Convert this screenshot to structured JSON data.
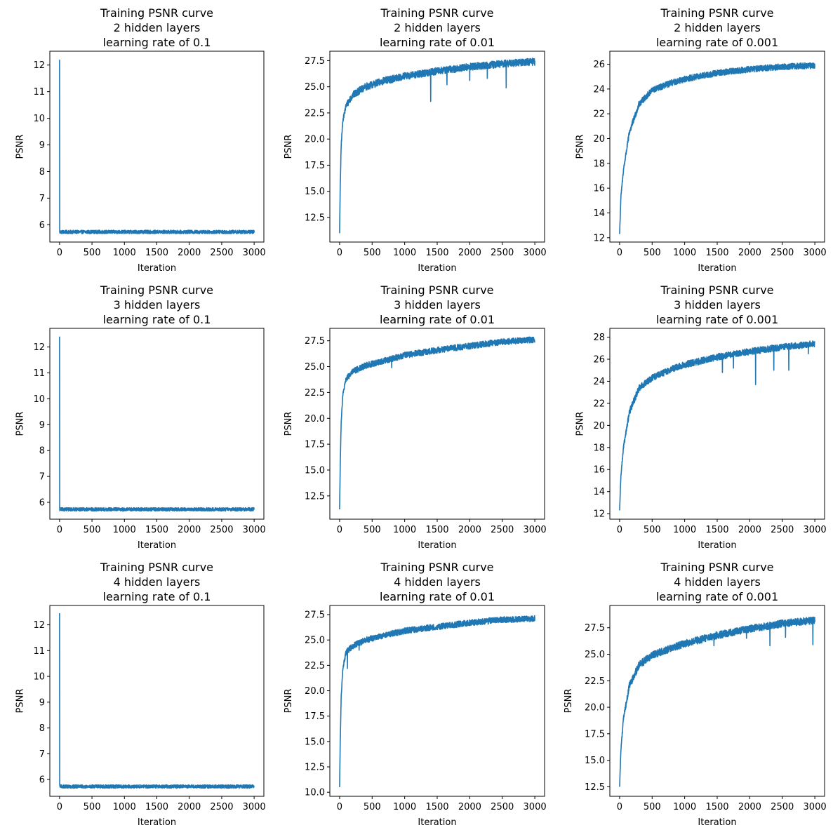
{
  "chart_data": [
    {
      "type": "line",
      "title": [
        "Training PSNR curve",
        "2 hidden layers",
        "learning rate of 0.1"
      ],
      "xlabel": "Iteration",
      "ylabel": "PSNR",
      "xlim": [
        -150,
        3150
      ],
      "ylim": [
        5.35,
        12.52
      ],
      "xticks": [
        0,
        500,
        1000,
        1500,
        2000,
        2500,
        3000
      ],
      "yticks": [
        6,
        7,
        8,
        9,
        10,
        11,
        12
      ],
      "ytick_labels": [
        "6",
        "7",
        "8",
        "9",
        "10",
        "11",
        "12"
      ],
      "series": [
        {
          "name": "PSNR",
          "color": "#1f77b4",
          "shape": "spike",
          "x": [
            0,
            3000
          ],
          "start": 12.2,
          "plateau": 5.73,
          "noise": 0.13,
          "dips": []
        }
      ]
    },
    {
      "type": "line",
      "title": [
        "Training PSNR curve",
        "2 hidden layers",
        "learning rate of 0.01"
      ],
      "xlabel": "Iteration",
      "ylabel": "PSNR",
      "xlim": [
        -150,
        3150
      ],
      "ylim": [
        10.15,
        28.4
      ],
      "xticks": [
        0,
        500,
        1000,
        1500,
        2000,
        2500,
        3000
      ],
      "yticks": [
        12.5,
        15.0,
        17.5,
        20.0,
        22.5,
        25.0,
        27.5
      ],
      "ytick_labels": [
        "12.5",
        "15.0",
        "17.5",
        "20.0",
        "22.5",
        "25.0",
        "27.5"
      ],
      "series": [
        {
          "name": "PSNR",
          "color": "#1f77b4",
          "shape": "rise",
          "x": [
            0,
            3000
          ],
          "start": 11.0,
          "points": [
            [
              0,
              11.0
            ],
            [
              10,
              15.5
            ],
            [
              25,
              19.5
            ],
            [
              50,
              21.8
            ],
            [
              100,
              23.2
            ],
            [
              200,
              24.2
            ],
            [
              400,
              25.0
            ],
            [
              700,
              25.6
            ],
            [
              1000,
              26.0
            ],
            [
              1500,
              26.5
            ],
            [
              2000,
              26.9
            ],
            [
              2500,
              27.2
            ],
            [
              3000,
              27.4
            ]
          ],
          "noise": 0.7,
          "dips": [
            [
              1400,
              23.6
            ],
            [
              1650,
              25.2
            ],
            [
              2000,
              25.6
            ],
            [
              2560,
              24.9
            ],
            [
              2270,
              25.8
            ]
          ]
        }
      ]
    },
    {
      "type": "line",
      "title": [
        "Training PSNR curve",
        "2 hidden layers",
        "learning rate of 0.001"
      ],
      "xlabel": "Iteration",
      "ylabel": "PSNR",
      "xlim": [
        -150,
        3150
      ],
      "ylim": [
        11.65,
        27.05
      ],
      "xticks": [
        0,
        500,
        1000,
        1500,
        2000,
        2500,
        3000
      ],
      "yticks": [
        12,
        14,
        16,
        18,
        20,
        22,
        24,
        26
      ],
      "ytick_labels": [
        "12",
        "14",
        "16",
        "18",
        "20",
        "22",
        "24",
        "26"
      ],
      "series": [
        {
          "name": "PSNR",
          "color": "#1f77b4",
          "shape": "rise",
          "x": [
            0,
            3000
          ],
          "start": 12.3,
          "points": [
            [
              0,
              12.3
            ],
            [
              20,
              15.3
            ],
            [
              60,
              17.5
            ],
            [
              150,
              20.5
            ],
            [
              300,
              22.8
            ],
            [
              500,
              23.9
            ],
            [
              800,
              24.5
            ],
            [
              1000,
              24.8
            ],
            [
              1500,
              25.3
            ],
            [
              2000,
              25.6
            ],
            [
              2500,
              25.8
            ],
            [
              3000,
              25.9
            ]
          ],
          "noise": 0.5,
          "dips": []
        }
      ]
    },
    {
      "type": "line",
      "title": [
        "Training PSNR curve",
        "3 hidden layers",
        "learning rate of 0.1"
      ],
      "xlabel": "Iteration",
      "ylabel": "PSNR",
      "xlim": [
        -150,
        3150
      ],
      "ylim": [
        5.35,
        12.72
      ],
      "xticks": [
        0,
        500,
        1000,
        1500,
        2000,
        2500,
        3000
      ],
      "yticks": [
        6,
        7,
        8,
        9,
        10,
        11,
        12
      ],
      "ytick_labels": [
        "6",
        "7",
        "8",
        "9",
        "10",
        "11",
        "12"
      ],
      "series": [
        {
          "name": "PSNR",
          "color": "#1f77b4",
          "shape": "spike",
          "x": [
            0,
            3000
          ],
          "start": 12.4,
          "plateau": 5.73,
          "noise": 0.13,
          "dips": []
        }
      ]
    },
    {
      "type": "line",
      "title": [
        "Training PSNR curve",
        "3 hidden layers",
        "learning rate of 0.01"
      ],
      "xlabel": "Iteration",
      "ylabel": "PSNR",
      "xlim": [
        -150,
        3150
      ],
      "ylim": [
        10.25,
        28.7
      ],
      "xticks": [
        0,
        500,
        1000,
        1500,
        2000,
        2500,
        3000
      ],
      "yticks": [
        12.5,
        15.0,
        17.5,
        20.0,
        22.5,
        25.0,
        27.5
      ],
      "ytick_labels": [
        "12.5",
        "15.0",
        "17.5",
        "20.0",
        "22.5",
        "25.0",
        "27.5"
      ],
      "series": [
        {
          "name": "PSNR",
          "color": "#1f77b4",
          "shape": "rise",
          "x": [
            0,
            3000
          ],
          "start": 11.2,
          "points": [
            [
              0,
              11.2
            ],
            [
              10,
              15.5
            ],
            [
              25,
              19.8
            ],
            [
              50,
              22.3
            ],
            [
              100,
              23.8
            ],
            [
              200,
              24.5
            ],
            [
              400,
              25.1
            ],
            [
              700,
              25.6
            ],
            [
              1000,
              26.1
            ],
            [
              1500,
              26.6
            ],
            [
              2000,
              27.0
            ],
            [
              2500,
              27.4
            ],
            [
              3000,
              27.6
            ]
          ],
          "noise": 0.6,
          "dips": [
            [
              800,
              24.9
            ]
          ]
        }
      ]
    },
    {
      "type": "line",
      "title": [
        "Training PSNR curve",
        "3 hidden layers",
        "learning rate of 0.001"
      ],
      "xlabel": "Iteration",
      "ylabel": "PSNR",
      "xlim": [
        -150,
        3150
      ],
      "ylim": [
        11.5,
        28.8
      ],
      "xticks": [
        0,
        500,
        1000,
        1500,
        2000,
        2500,
        3000
      ],
      "yticks": [
        12,
        14,
        16,
        18,
        20,
        22,
        24,
        26,
        28
      ],
      "ytick_labels": [
        "12",
        "14",
        "16",
        "18",
        "20",
        "22",
        "24",
        "26",
        "28"
      ],
      "series": [
        {
          "name": "PSNR",
          "color": "#1f77b4",
          "shape": "rise",
          "x": [
            0,
            3000
          ],
          "start": 12.3,
          "points": [
            [
              0,
              12.3
            ],
            [
              20,
              15.5
            ],
            [
              60,
              18.0
            ],
            [
              150,
              21.2
            ],
            [
              300,
              23.4
            ],
            [
              500,
              24.3
            ],
            [
              800,
              25.1
            ],
            [
              1000,
              25.5
            ],
            [
              1500,
              26.2
            ],
            [
              2000,
              26.7
            ],
            [
              2500,
              27.1
            ],
            [
              3000,
              27.4
            ]
          ],
          "noise": 0.6,
          "dips": [
            [
              2090,
              23.7
            ],
            [
              2370,
              25.0
            ],
            [
              2600,
              25.0
            ],
            [
              1580,
              24.8
            ],
            [
              1750,
              25.2
            ],
            [
              2900,
              26.5
            ]
          ]
        }
      ]
    },
    {
      "type": "line",
      "title": [
        "Training PSNR curve",
        "4 hidden layers",
        "learning rate of 0.1"
      ],
      "xlabel": "Iteration",
      "ylabel": "PSNR",
      "xlim": [
        -150,
        3150
      ],
      "ylim": [
        5.35,
        12.75
      ],
      "xticks": [
        0,
        500,
        1000,
        1500,
        2000,
        2500,
        3000
      ],
      "yticks": [
        6,
        7,
        8,
        9,
        10,
        11,
        12
      ],
      "ytick_labels": [
        "6",
        "7",
        "8",
        "9",
        "10",
        "11",
        "12"
      ],
      "series": [
        {
          "name": "PSNR",
          "color": "#1f77b4",
          "shape": "spike",
          "x": [
            0,
            3000
          ],
          "start": 12.45,
          "plateau": 5.73,
          "noise": 0.13,
          "dips": []
        }
      ]
    },
    {
      "type": "line",
      "title": [
        "Training PSNR curve",
        "4 hidden layers",
        "learning rate of 0.01"
      ],
      "xlabel": "Iteration",
      "ylabel": "PSNR",
      "xlim": [
        -150,
        3150
      ],
      "ylim": [
        9.6,
        28.4
      ],
      "xticks": [
        0,
        500,
        1000,
        1500,
        2000,
        2500,
        3000
      ],
      "yticks": [
        10.0,
        12.5,
        15.0,
        17.5,
        20.0,
        22.5,
        25.0,
        27.5
      ],
      "ytick_labels": [
        "10.0",
        "12.5",
        "15.0",
        "17.5",
        "20.0",
        "22.5",
        "25.0",
        "27.5"
      ],
      "series": [
        {
          "name": "PSNR",
          "color": "#1f77b4",
          "shape": "rise",
          "x": [
            0,
            3000
          ],
          "start": 10.5,
          "points": [
            [
              0,
              10.5
            ],
            [
              10,
              15.0
            ],
            [
              25,
              19.5
            ],
            [
              50,
              22.2
            ],
            [
              100,
              23.8
            ],
            [
              200,
              24.4
            ],
            [
              400,
              25.0
            ],
            [
              700,
              25.5
            ],
            [
              1000,
              25.9
            ],
            [
              1500,
              26.3
            ],
            [
              2000,
              26.7
            ],
            [
              2500,
              27.0
            ],
            [
              3000,
              27.1
            ]
          ],
          "noise": 0.6,
          "dips": [
            [
              120,
              22.2
            ],
            [
              300,
              24.0
            ]
          ]
        }
      ]
    },
    {
      "type": "line",
      "title": [
        "Training PSNR curve",
        "4 hidden layers",
        "learning rate of 0.001"
      ],
      "xlabel": "Iteration",
      "ylabel": "PSNR",
      "xlim": [
        -150,
        3150
      ],
      "ylim": [
        11.6,
        29.6
      ],
      "xticks": [
        0,
        500,
        1000,
        1500,
        2000,
        2500,
        3000
      ],
      "yticks": [
        12.5,
        15.0,
        17.5,
        20.0,
        22.5,
        25.0,
        27.5
      ],
      "ytick_labels": [
        "12.5",
        "15.0",
        "17.5",
        "20.0",
        "22.5",
        "25.0",
        "27.5"
      ],
      "series": [
        {
          "name": "PSNR",
          "color": "#1f77b4",
          "shape": "rise",
          "x": [
            0,
            3000
          ],
          "start": 12.5,
          "points": [
            [
              0,
              12.5
            ],
            [
              20,
              16.0
            ],
            [
              60,
              19.0
            ],
            [
              150,
              22.0
            ],
            [
              300,
              24.0
            ],
            [
              500,
              24.9
            ],
            [
              800,
              25.6
            ],
            [
              1000,
              26.0
            ],
            [
              1500,
              26.8
            ],
            [
              2000,
              27.4
            ],
            [
              2500,
              27.9
            ],
            [
              3000,
              28.2
            ]
          ],
          "noise": 0.7,
          "dips": [
            [
              2310,
              25.8
            ],
            [
              2550,
              26.6
            ],
            [
              2970,
              25.9
            ],
            [
              1450,
              25.8
            ],
            [
              1950,
              26.5
            ]
          ]
        }
      ]
    }
  ]
}
